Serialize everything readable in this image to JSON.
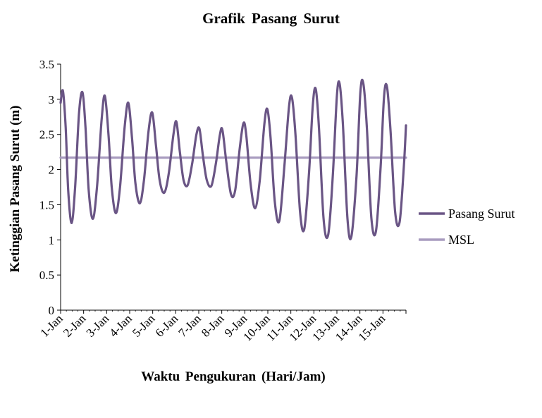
{
  "chart_data": {
    "type": "line",
    "title": "Grafik  Pasang Surut",
    "xlabel": "Waktu  Pengukuran (Hari/Jam)",
    "ylabel": "Ketinggian Pasang Surut (m)",
    "ylim": [
      0,
      3.5
    ],
    "yticks": [
      "0",
      "0.5",
      "1",
      "1.5",
      "2",
      "2.5",
      "3",
      "3.5"
    ],
    "categories": [
      "1-Jan",
      "2-Jan",
      "3-Jan",
      "4-Jan",
      "5-Jan",
      "6-Jan",
      "7-Jan",
      "8-Jan",
      "9-Jan",
      "10-Jan",
      "11-Jan",
      "12-Jan",
      "13-Jan",
      "14-Jan",
      "15-Jan"
    ],
    "legend_position": "right",
    "grid": false,
    "series": [
      {
        "name": "Pasang Surut",
        "color": "#6a5585",
        "points": [
          [
            0.0,
            2.95
          ],
          [
            0.1,
            3.12
          ],
          [
            0.22,
            2.6
          ],
          [
            0.33,
            1.7
          ],
          [
            0.48,
            1.24
          ],
          [
            0.63,
            1.75
          ],
          [
            0.8,
            2.8
          ],
          [
            0.95,
            3.1
          ],
          [
            1.08,
            2.6
          ],
          [
            1.22,
            1.7
          ],
          [
            1.4,
            1.3
          ],
          [
            1.58,
            1.75
          ],
          [
            1.78,
            2.7
          ],
          [
            1.92,
            3.05
          ],
          [
            2.08,
            2.5
          ],
          [
            2.22,
            1.75
          ],
          [
            2.4,
            1.38
          ],
          [
            2.58,
            1.75
          ],
          [
            2.78,
            2.6
          ],
          [
            2.94,
            2.95
          ],
          [
            3.1,
            2.45
          ],
          [
            3.25,
            1.8
          ],
          [
            3.44,
            1.52
          ],
          [
            3.62,
            1.85
          ],
          [
            3.82,
            2.55
          ],
          [
            3.98,
            2.81
          ],
          [
            4.14,
            2.35
          ],
          [
            4.3,
            1.85
          ],
          [
            4.5,
            1.67
          ],
          [
            4.7,
            1.95
          ],
          [
            4.9,
            2.5
          ],
          [
            5.03,
            2.68
          ],
          [
            5.18,
            2.25
          ],
          [
            5.34,
            1.85
          ],
          [
            5.52,
            1.78
          ],
          [
            5.72,
            2.1
          ],
          [
            5.9,
            2.5
          ],
          [
            6.03,
            2.58
          ],
          [
            6.18,
            2.2
          ],
          [
            6.35,
            1.85
          ],
          [
            6.55,
            1.77
          ],
          [
            6.75,
            2.1
          ],
          [
            6.92,
            2.5
          ],
          [
            7.03,
            2.56
          ],
          [
            7.2,
            2.1
          ],
          [
            7.4,
            1.65
          ],
          [
            7.58,
            1.7
          ],
          [
            7.78,
            2.3
          ],
          [
            7.94,
            2.66
          ],
          [
            8.06,
            2.5
          ],
          [
            8.25,
            1.8
          ],
          [
            8.45,
            1.45
          ],
          [
            8.65,
            1.85
          ],
          [
            8.85,
            2.65
          ],
          [
            8.98,
            2.86
          ],
          [
            9.12,
            2.45
          ],
          [
            9.3,
            1.55
          ],
          [
            9.5,
            1.27
          ],
          [
            9.72,
            2.05
          ],
          [
            9.92,
            2.9
          ],
          [
            10.05,
            3.02
          ],
          [
            10.2,
            2.5
          ],
          [
            10.4,
            1.4
          ],
          [
            10.58,
            1.15
          ],
          [
            10.78,
            1.9
          ],
          [
            10.95,
            2.9
          ],
          [
            11.08,
            3.15
          ],
          [
            11.22,
            2.6
          ],
          [
            11.42,
            1.3
          ],
          [
            11.62,
            1.07
          ],
          [
            11.82,
            1.9
          ],
          [
            12.0,
            3.05
          ],
          [
            12.12,
            3.22
          ],
          [
            12.26,
            2.65
          ],
          [
            12.46,
            1.3
          ],
          [
            12.63,
            1.05
          ],
          [
            12.85,
            1.9
          ],
          [
            13.02,
            3.1
          ],
          [
            13.15,
            3.22
          ],
          [
            13.3,
            2.6
          ],
          [
            13.5,
            1.3
          ],
          [
            13.7,
            1.13
          ],
          [
            13.9,
            2.05
          ],
          [
            14.05,
            3.05
          ],
          [
            14.18,
            3.17
          ],
          [
            14.33,
            2.55
          ],
          [
            14.53,
            1.4
          ],
          [
            14.72,
            1.25
          ],
          [
            14.9,
            2.0
          ],
          [
            15.0,
            2.63
          ]
        ]
      },
      {
        "name": "MSL",
        "color": "#a89bbf",
        "points": [
          [
            0.0,
            2.17
          ],
          [
            15.0,
            2.17
          ]
        ]
      }
    ]
  }
}
